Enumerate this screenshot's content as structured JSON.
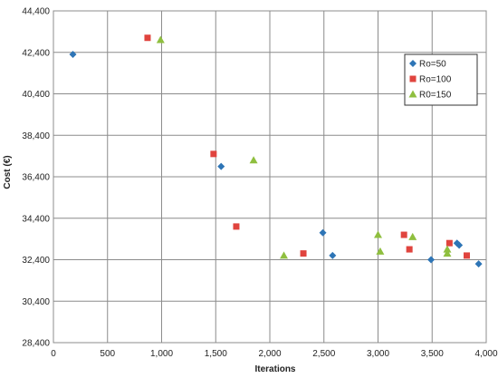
{
  "chart_data": {
    "type": "scatter",
    "xlabel": "Iterations",
    "ylabel": "Cost (€)",
    "xlim": [
      0,
      4000
    ],
    "ylim": [
      28400,
      44400
    ],
    "x_ticks": [
      0,
      500,
      1000,
      1500,
      2000,
      2500,
      3000,
      3500,
      4000
    ],
    "x_tick_labels": [
      "0",
      "500",
      "1,000",
      "1,500",
      "2,000",
      "2,500",
      "3,000",
      "3,500",
      "4,000"
    ],
    "y_ticks": [
      28400,
      30400,
      32400,
      34400,
      36400,
      38400,
      40400,
      42400,
      44400
    ],
    "y_tick_labels": [
      "28,400",
      "30,400",
      "32,400",
      "34,400",
      "36,400",
      "38,400",
      "40,400",
      "42,400",
      "44,400"
    ],
    "grid": true,
    "legend_position": "right",
    "series": [
      {
        "name": "Ro=50",
        "marker": "diamond",
        "color": "#2e75b6",
        "points": [
          [
            180,
            42300
          ],
          [
            1550,
            36900
          ],
          [
            2490,
            33700
          ],
          [
            2580,
            32600
          ],
          [
            3490,
            32400
          ],
          [
            3730,
            33200
          ],
          [
            3750,
            33100
          ],
          [
            3930,
            32200
          ]
        ]
      },
      {
        "name": "Ro=100",
        "marker": "square",
        "color": "#e0443e",
        "points": [
          [
            870,
            43100
          ],
          [
            1480,
            37500
          ],
          [
            1690,
            34000
          ],
          [
            2310,
            32700
          ],
          [
            3240,
            33600
          ],
          [
            3290,
            32900
          ],
          [
            3660,
            33200
          ],
          [
            3820,
            32600
          ]
        ]
      },
      {
        "name": "R0=150",
        "marker": "triangle",
        "color": "#8fbf3f",
        "points": [
          [
            990,
            43000
          ],
          [
            1850,
            37200
          ],
          [
            2130,
            32600
          ],
          [
            3000,
            33600
          ],
          [
            3020,
            32800
          ],
          [
            3320,
            33500
          ],
          [
            3640,
            32900
          ],
          [
            3640,
            32700
          ]
        ]
      }
    ]
  }
}
